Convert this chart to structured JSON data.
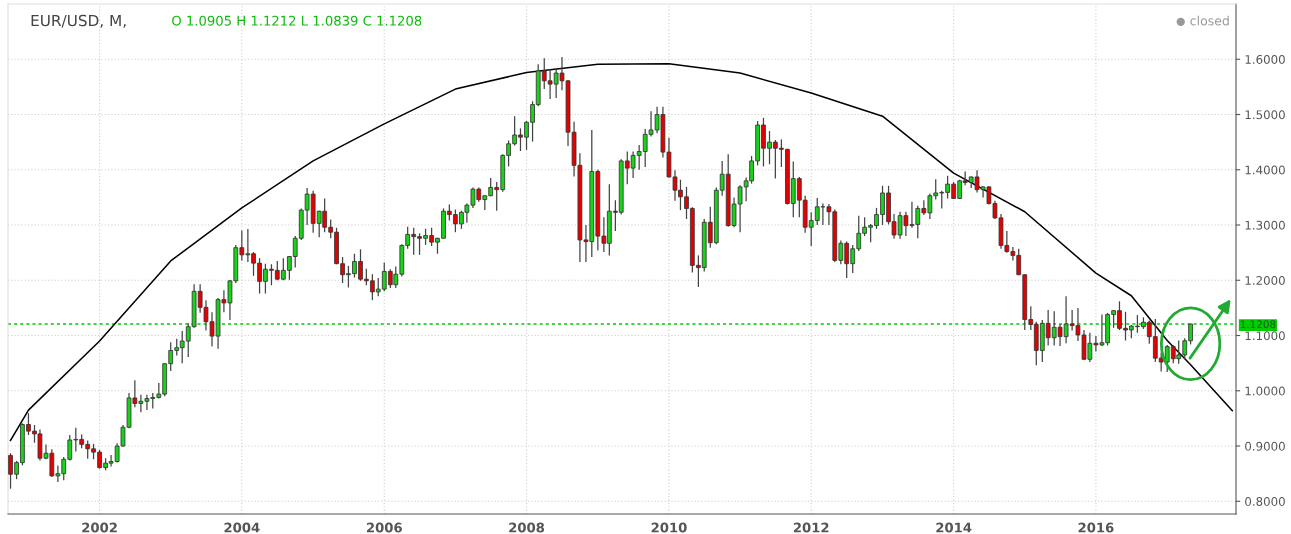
{
  "chart_data": {
    "type": "candlestick",
    "title": "EUR/USD, M,",
    "annotations": [
      "O 1.0905 H 1.1212 L 1.0839 C 1.1208",
      "closed"
    ],
    "x": [
      "2000-10",
      "2000-11",
      "2000-12",
      "2001-01",
      "2001-02",
      "2001-03",
      "2001-04",
      "2001-05",
      "2001-06",
      "2001-07",
      "2001-08",
      "2001-09",
      "2001-10",
      "2001-11",
      "2001-12",
      "2002-01",
      "2002-02",
      "2002-03",
      "2002-04",
      "2002-05",
      "2002-06",
      "2002-07",
      "2002-08",
      "2002-09",
      "2002-10",
      "2002-11",
      "2002-12",
      "2003-01",
      "2003-02",
      "2003-03",
      "2003-04",
      "2003-05",
      "2003-06",
      "2003-07",
      "2003-08",
      "2003-09",
      "2003-10",
      "2003-11",
      "2003-12",
      "2004-01",
      "2004-02",
      "2004-03",
      "2004-04",
      "2004-05",
      "2004-06",
      "2004-07",
      "2004-08",
      "2004-09",
      "2004-10",
      "2004-11",
      "2004-12",
      "2005-01",
      "2005-02",
      "2005-03",
      "2005-04",
      "2005-05",
      "2005-06",
      "2005-07",
      "2005-08",
      "2005-09",
      "2005-10",
      "2005-11",
      "2005-12",
      "2006-01",
      "2006-02",
      "2006-03",
      "2006-04",
      "2006-05",
      "2006-06",
      "2006-07",
      "2006-08",
      "2006-09",
      "2006-10",
      "2006-11",
      "2006-12",
      "2007-01",
      "2007-02",
      "2007-03",
      "2007-04",
      "2007-05",
      "2007-06",
      "2007-07",
      "2007-08",
      "2007-09",
      "2007-10",
      "2007-11",
      "2007-12",
      "2008-01",
      "2008-02",
      "2008-03",
      "2008-04",
      "2008-05",
      "2008-06",
      "2008-07",
      "2008-08",
      "2008-09",
      "2008-10",
      "2008-11",
      "2008-12",
      "2009-01",
      "2009-02",
      "2009-03",
      "2009-04",
      "2009-05",
      "2009-06",
      "2009-07",
      "2009-08",
      "2009-09",
      "2009-10",
      "2009-11",
      "2009-12",
      "2010-01",
      "2010-02",
      "2010-03",
      "2010-04",
      "2010-05",
      "2010-06",
      "2010-07",
      "2010-08",
      "2010-09",
      "2010-10",
      "2010-11",
      "2010-12",
      "2011-01",
      "2011-02",
      "2011-03",
      "2011-04",
      "2011-05",
      "2011-06",
      "2011-07",
      "2011-08",
      "2011-09",
      "2011-10",
      "2011-11",
      "2011-12",
      "2012-01",
      "2012-02",
      "2012-03",
      "2012-04",
      "2012-05",
      "2012-06",
      "2012-07",
      "2012-08",
      "2012-09",
      "2012-10",
      "2012-11",
      "2012-12",
      "2013-01",
      "2013-02",
      "2013-03",
      "2013-04",
      "2013-05",
      "2013-06",
      "2013-07",
      "2013-08",
      "2013-09",
      "2013-10",
      "2013-11",
      "2013-12",
      "2014-01",
      "2014-02",
      "2014-03",
      "2014-04",
      "2014-05",
      "2014-06",
      "2014-07",
      "2014-08",
      "2014-09",
      "2014-10",
      "2014-11",
      "2014-12",
      "2015-01",
      "2015-02",
      "2015-03",
      "2015-04",
      "2015-05",
      "2015-06",
      "2015-07",
      "2015-08",
      "2015-09",
      "2015-10",
      "2015-11",
      "2015-12",
      "2016-01",
      "2016-02",
      "2016-03",
      "2016-04",
      "2016-05",
      "2016-06",
      "2016-07",
      "2016-08",
      "2016-09",
      "2016-10",
      "2016-11",
      "2016-12",
      "2017-01",
      "2017-02",
      "2017-03",
      "2017-04",
      "2017-05"
    ],
    "ohlc": [
      [
        0.883,
        0.887,
        0.8228,
        0.849
      ],
      [
        0.849,
        0.873,
        0.84,
        0.87
      ],
      [
        0.87,
        0.941,
        0.865,
        0.939
      ],
      [
        0.939,
        0.9595,
        0.92,
        0.927
      ],
      [
        0.927,
        0.938,
        0.906,
        0.922
      ],
      [
        0.922,
        0.93,
        0.874,
        0.878
      ],
      [
        0.878,
        0.903,
        0.876,
        0.887
      ],
      [
        0.887,
        0.894,
        0.844,
        0.846
      ],
      [
        0.846,
        0.865,
        0.835,
        0.85
      ],
      [
        0.85,
        0.88,
        0.838,
        0.876
      ],
      [
        0.876,
        0.92,
        0.874,
        0.911
      ],
      [
        0.911,
        0.933,
        0.89,
        0.912
      ],
      [
        0.912,
        0.921,
        0.896,
        0.903
      ],
      [
        0.903,
        0.91,
        0.877,
        0.895
      ],
      [
        0.895,
        0.904,
        0.876,
        0.889
      ],
      [
        0.889,
        0.893,
        0.859,
        0.861
      ],
      [
        0.861,
        0.878,
        0.856,
        0.869
      ],
      [
        0.869,
        0.884,
        0.863,
        0.872
      ],
      [
        0.872,
        0.905,
        0.87,
        0.9
      ],
      [
        0.9,
        0.938,
        0.899,
        0.934
      ],
      [
        0.934,
        0.996,
        0.932,
        0.987
      ],
      [
        0.987,
        1.019,
        0.97,
        0.977
      ],
      [
        0.977,
        0.993,
        0.961,
        0.981
      ],
      [
        0.981,
        0.993,
        0.965,
        0.986
      ],
      [
        0.986,
        0.996,
        0.968,
        0.988
      ],
      [
        0.988,
        1.014,
        0.986,
        0.994
      ],
      [
        0.994,
        1.05,
        0.99,
        1.049
      ],
      [
        1.049,
        1.088,
        1.036,
        1.073
      ],
      [
        1.073,
        1.094,
        1.064,
        1.078
      ],
      [
        1.078,
        1.108,
        1.05,
        1.09
      ],
      [
        1.09,
        1.122,
        1.061,
        1.116
      ],
      [
        1.116,
        1.193,
        1.114,
        1.18
      ],
      [
        1.18,
        1.193,
        1.141,
        1.151
      ],
      [
        1.151,
        1.164,
        1.109,
        1.125
      ],
      [
        1.125,
        1.142,
        1.08,
        1.099
      ],
      [
        1.099,
        1.168,
        1.076,
        1.165
      ],
      [
        1.165,
        1.182,
        1.142,
        1.159
      ],
      [
        1.159,
        1.2,
        1.128,
        1.199
      ],
      [
        1.199,
        1.264,
        1.195,
        1.259
      ],
      [
        1.259,
        1.29,
        1.236,
        1.246
      ],
      [
        1.246,
        1.293,
        1.233,
        1.248
      ],
      [
        1.248,
        1.251,
        1.208,
        1.231
      ],
      [
        1.231,
        1.24,
        1.176,
        1.198
      ],
      [
        1.198,
        1.23,
        1.176,
        1.22
      ],
      [
        1.22,
        1.229,
        1.191,
        1.218
      ],
      [
        1.218,
        1.235,
        1.2,
        1.202
      ],
      [
        1.202,
        1.24,
        1.2,
        1.218
      ],
      [
        1.218,
        1.244,
        1.201,
        1.243
      ],
      [
        1.243,
        1.28,
        1.223,
        1.276
      ],
      [
        1.276,
        1.33,
        1.273,
        1.327
      ],
      [
        1.327,
        1.367,
        1.3,
        1.356
      ],
      [
        1.356,
        1.362,
        1.286,
        1.303
      ],
      [
        1.303,
        1.326,
        1.278,
        1.325
      ],
      [
        1.325,
        1.348,
        1.287,
        1.296
      ],
      [
        1.296,
        1.31,
        1.276,
        1.287
      ],
      [
        1.287,
        1.295,
        1.229,
        1.23
      ],
      [
        1.23,
        1.242,
        1.195,
        1.21
      ],
      [
        1.21,
        1.226,
        1.187,
        1.212
      ],
      [
        1.212,
        1.248,
        1.205,
        1.234
      ],
      [
        1.234,
        1.256,
        1.199,
        1.202
      ],
      [
        1.202,
        1.221,
        1.191,
        1.199
      ],
      [
        1.199,
        1.211,
        1.164,
        1.179
      ],
      [
        1.179,
        1.204,
        1.171,
        1.184
      ],
      [
        1.184,
        1.232,
        1.18,
        1.216
      ],
      [
        1.216,
        1.22,
        1.186,
        1.192
      ],
      [
        1.192,
        1.225,
        1.186,
        1.211
      ],
      [
        1.211,
        1.265,
        1.207,
        1.263
      ],
      [
        1.263,
        1.297,
        1.257,
        1.283
      ],
      [
        1.283,
        1.295,
        1.246,
        1.279
      ],
      [
        1.279,
        1.285,
        1.246,
        1.276
      ],
      [
        1.276,
        1.293,
        1.264,
        1.281
      ],
      [
        1.281,
        1.295,
        1.262,
        1.269
      ],
      [
        1.269,
        1.277,
        1.248,
        1.276
      ],
      [
        1.276,
        1.33,
        1.276,
        1.325
      ],
      [
        1.325,
        1.337,
        1.308,
        1.319
      ],
      [
        1.319,
        1.328,
        1.287,
        1.302
      ],
      [
        1.302,
        1.326,
        1.293,
        1.323
      ],
      [
        1.323,
        1.339,
        1.304,
        1.336
      ],
      [
        1.336,
        1.368,
        1.331,
        1.365
      ],
      [
        1.365,
        1.368,
        1.342,
        1.346
      ],
      [
        1.346,
        1.353,
        1.327,
        1.353
      ],
      [
        1.353,
        1.385,
        1.352,
        1.368
      ],
      [
        1.368,
        1.378,
        1.326,
        1.364
      ],
      [
        1.364,
        1.428,
        1.36,
        1.426
      ],
      [
        1.426,
        1.453,
        1.406,
        1.447
      ],
      [
        1.447,
        1.497,
        1.444,
        1.463
      ],
      [
        1.463,
        1.475,
        1.434,
        1.459
      ],
      [
        1.459,
        1.488,
        1.436,
        1.486
      ],
      [
        1.486,
        1.524,
        1.451,
        1.518
      ],
      [
        1.518,
        1.591,
        1.515,
        1.579
      ],
      [
        1.579,
        1.602,
        1.546,
        1.561
      ],
      [
        1.561,
        1.582,
        1.528,
        1.555
      ],
      [
        1.555,
        1.584,
        1.53,
        1.575
      ],
      [
        1.575,
        1.604,
        1.544,
        1.561
      ],
      [
        1.561,
        1.562,
        1.443,
        1.468
      ],
      [
        1.468,
        1.487,
        1.388,
        1.408
      ],
      [
        1.408,
        1.43,
        1.233,
        1.273
      ],
      [
        1.273,
        1.3,
        1.233,
        1.27
      ],
      [
        1.27,
        1.472,
        1.242,
        1.397
      ],
      [
        1.397,
        1.4,
        1.254,
        1.28
      ],
      [
        1.28,
        1.314,
        1.251,
        1.267
      ],
      [
        1.267,
        1.374,
        1.245,
        1.325
      ],
      [
        1.325,
        1.345,
        1.289,
        1.323
      ],
      [
        1.323,
        1.419,
        1.319,
        1.416
      ],
      [
        1.416,
        1.433,
        1.374,
        1.403
      ],
      [
        1.403,
        1.433,
        1.385,
        1.426
      ],
      [
        1.426,
        1.445,
        1.4,
        1.433
      ],
      [
        1.433,
        1.474,
        1.405,
        1.464
      ],
      [
        1.464,
        1.506,
        1.46,
        1.472
      ],
      [
        1.472,
        1.514,
        1.466,
        1.5
      ],
      [
        1.5,
        1.514,
        1.422,
        1.432
      ],
      [
        1.432,
        1.458,
        1.386,
        1.387
      ],
      [
        1.387,
        1.399,
        1.344,
        1.363
      ],
      [
        1.363,
        1.382,
        1.327,
        1.351
      ],
      [
        1.351,
        1.369,
        1.311,
        1.33
      ],
      [
        1.33,
        1.332,
        1.214,
        1.227
      ],
      [
        1.227,
        1.245,
        1.188,
        1.223
      ],
      [
        1.223,
        1.311,
        1.216,
        1.305
      ],
      [
        1.305,
        1.333,
        1.259,
        1.268
      ],
      [
        1.268,
        1.368,
        1.265,
        1.363
      ],
      [
        1.363,
        1.416,
        1.353,
        1.392
      ],
      [
        1.392,
        1.428,
        1.297,
        1.299
      ],
      [
        1.299,
        1.35,
        1.296,
        1.338
      ],
      [
        1.338,
        1.372,
        1.287,
        1.369
      ],
      [
        1.369,
        1.386,
        1.343,
        1.38
      ],
      [
        1.38,
        1.425,
        1.375,
        1.416
      ],
      [
        1.416,
        1.488,
        1.408,
        1.481
      ],
      [
        1.481,
        1.494,
        1.406,
        1.439
      ],
      [
        1.439,
        1.47,
        1.41,
        1.45
      ],
      [
        1.45,
        1.454,
        1.384,
        1.439
      ],
      [
        1.439,
        1.455,
        1.405,
        1.437
      ],
      [
        1.437,
        1.438,
        1.337,
        1.339
      ],
      [
        1.339,
        1.415,
        1.314,
        1.384
      ],
      [
        1.384,
        1.387,
        1.314,
        1.345
      ],
      [
        1.345,
        1.353,
        1.286,
        1.296
      ],
      [
        1.296,
        1.323,
        1.262,
        1.308
      ],
      [
        1.308,
        1.349,
        1.3,
        1.333
      ],
      [
        1.333,
        1.339,
        1.3,
        1.333
      ],
      [
        1.333,
        1.338,
        1.3,
        1.324
      ],
      [
        1.324,
        1.328,
        1.233,
        1.236
      ],
      [
        1.236,
        1.272,
        1.229,
        1.267
      ],
      [
        1.267,
        1.27,
        1.204,
        1.23
      ],
      [
        1.23,
        1.264,
        1.213,
        1.257
      ],
      [
        1.257,
        1.317,
        1.253,
        1.285
      ],
      [
        1.285,
        1.314,
        1.28,
        1.296
      ],
      [
        1.296,
        1.302,
        1.269,
        1.299
      ],
      [
        1.299,
        1.331,
        1.293,
        1.319
      ],
      [
        1.319,
        1.371,
        1.3,
        1.358
      ],
      [
        1.358,
        1.371,
        1.301,
        1.306
      ],
      [
        1.306,
        1.32,
        1.275,
        1.282
      ],
      [
        1.282,
        1.324,
        1.275,
        1.317
      ],
      [
        1.317,
        1.324,
        1.28,
        1.299
      ],
      [
        1.299,
        1.342,
        1.295,
        1.301
      ],
      [
        1.301,
        1.335,
        1.276,
        1.33
      ],
      [
        1.33,
        1.345,
        1.318,
        1.322
      ],
      [
        1.322,
        1.357,
        1.311,
        1.353
      ],
      [
        1.353,
        1.383,
        1.346,
        1.358
      ],
      [
        1.358,
        1.362,
        1.33,
        1.359
      ],
      [
        1.359,
        1.389,
        1.348,
        1.374
      ],
      [
        1.374,
        1.378,
        1.348,
        1.348
      ],
      [
        1.348,
        1.382,
        1.347,
        1.38
      ],
      [
        1.38,
        1.397,
        1.372,
        1.377
      ],
      [
        1.377,
        1.388,
        1.367,
        1.387
      ],
      [
        1.387,
        1.399,
        1.359,
        1.364
      ],
      [
        1.364,
        1.37,
        1.35,
        1.369
      ],
      [
        1.369,
        1.37,
        1.337,
        1.339
      ],
      [
        1.339,
        1.344,
        1.311,
        1.313
      ],
      [
        1.313,
        1.32,
        1.257,
        1.263
      ],
      [
        1.263,
        1.289,
        1.25,
        1.252
      ],
      [
        1.252,
        1.26,
        1.236,
        1.245
      ],
      [
        1.245,
        1.257,
        1.21,
        1.21
      ],
      [
        1.21,
        1.211,
        1.11,
        1.129
      ],
      [
        1.129,
        1.153,
        1.11,
        1.12
      ],
      [
        1.12,
        1.125,
        1.046,
        1.073
      ],
      [
        1.073,
        1.128,
        1.052,
        1.122
      ],
      [
        1.122,
        1.146,
        1.082,
        1.096
      ],
      [
        1.096,
        1.144,
        1.082,
        1.115
      ],
      [
        1.115,
        1.121,
        1.081,
        1.098
      ],
      [
        1.098,
        1.171,
        1.086,
        1.121
      ],
      [
        1.121,
        1.146,
        1.109,
        1.118
      ],
      [
        1.118,
        1.15,
        1.09,
        1.101
      ],
      [
        1.101,
        1.11,
        1.056,
        1.057
      ],
      [
        1.057,
        1.105,
        1.052,
        1.086
      ],
      [
        1.086,
        1.099,
        1.071,
        1.083
      ],
      [
        1.083,
        1.138,
        1.081,
        1.087
      ],
      [
        1.087,
        1.141,
        1.082,
        1.138
      ],
      [
        1.138,
        1.146,
        1.114,
        1.145
      ],
      [
        1.145,
        1.162,
        1.11,
        1.113
      ],
      [
        1.113,
        1.143,
        1.091,
        1.11
      ],
      [
        1.11,
        1.119,
        1.095,
        1.117
      ],
      [
        1.117,
        1.137,
        1.105,
        1.116
      ],
      [
        1.116,
        1.133,
        1.112,
        1.124
      ],
      [
        1.124,
        1.127,
        1.085,
        1.098
      ],
      [
        1.098,
        1.13,
        1.052,
        1.059
      ],
      [
        1.059,
        1.069,
        1.035,
        1.052
      ],
      [
        1.052,
        1.083,
        1.034,
        1.08
      ],
      [
        1.08,
        1.083,
        1.05,
        1.058
      ],
      [
        1.058,
        1.091,
        1.049,
        1.065
      ],
      [
        1.065,
        1.095,
        1.057,
        1.0905
      ],
      [
        1.0905,
        1.1212,
        1.0839,
        1.1208
      ]
    ],
    "series": [
      {
        "type": "line",
        "color": "#000000",
        "x": [
          "2000-10",
          "2001-01",
          "2002-01",
          "2003-01",
          "2004-01",
          "2005-01",
          "2006-01",
          "2007-01",
          "2008-01",
          "2009-01",
          "2010-01",
          "2011-01",
          "2012-01",
          "2013-01",
          "2014-01",
          "2015-01",
          "2016-01",
          "2016-07",
          "2017-01",
          "2017-05",
          "2017-12"
        ],
        "values": [
          0.91,
          0.965,
          1.09,
          1.235,
          1.331,
          1.416,
          1.483,
          1.546,
          1.576,
          1.591,
          1.592,
          1.575,
          1.539,
          1.497,
          1.394,
          1.324,
          1.213,
          1.172,
          1.091,
          1.047,
          0.964
        ]
      }
    ],
    "ref_lines": [
      {
        "axis": "y",
        "value": 1.1208,
        "label": "1.1208",
        "color": "#00cc00",
        "line_style": "dashed"
      }
    ],
    "xlim": [
      "2000-09-18",
      "2017-12-20"
    ],
    "ylim": [
      0.777,
      1.7
    ],
    "xticks": [
      "2002",
      "2004",
      "2006",
      "2008",
      "2010",
      "2012",
      "2014",
      "2016"
    ],
    "yticks": [
      {
        "value": 0.8,
        "label": "0.8000"
      },
      {
        "value": 0.9,
        "label": "0.9000"
      },
      {
        "value": 1.0,
        "label": "1.0000"
      },
      {
        "value": 1.1,
        "label": "1.1000"
      },
      {
        "value": 1.2,
        "label": "1.2000"
      },
      {
        "value": 1.3,
        "label": "1.3000"
      },
      {
        "value": 1.4,
        "label": "1.4000"
      },
      {
        "value": 1.5,
        "label": "1.5000"
      },
      {
        "value": 1.6,
        "label": "1.6000"
      }
    ],
    "grid": true
  }
}
